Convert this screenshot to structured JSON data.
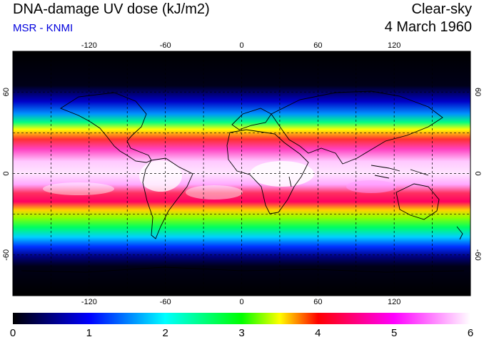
{
  "header": {
    "title": "DNA-damage UV dose (kJ/m2)",
    "source": "MSR - KNMI",
    "sky_condition": "Clear-sky",
    "date": "4 March 1960"
  },
  "map": {
    "projection": "equirectangular",
    "lon_range": [
      -180,
      180
    ],
    "lat_range": [
      -90,
      90
    ],
    "lon_ticks": [
      "-120",
      "-60",
      "0",
      "60",
      "120"
    ],
    "lat_ticks": [
      "60",
      "0",
      "-60"
    ],
    "gridlines": "dashed, every 30 degrees",
    "quantity": "DNA-damage UV dose",
    "units": "kJ/m2"
  },
  "colorbar": {
    "min": 0,
    "max": 6,
    "labels": [
      "0",
      "1",
      "2",
      "3",
      "4",
      "5",
      "6"
    ],
    "colors": [
      "#000000",
      "#0000ff",
      "#00ffff",
      "#00ff00",
      "#ffff00",
      "#ff0000",
      "#ff00ff",
      "#ffffff"
    ]
  }
}
